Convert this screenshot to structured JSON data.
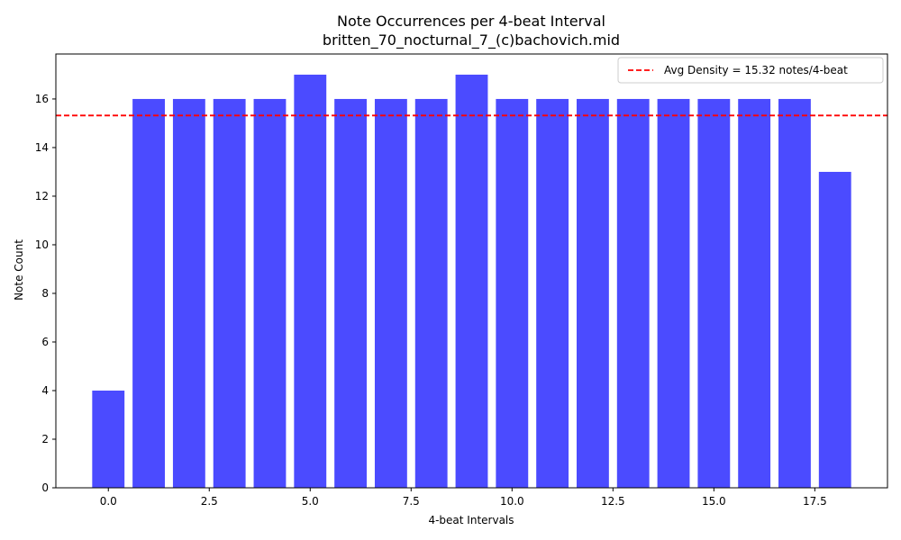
{
  "chart_data": {
    "type": "bar",
    "title": "Note Occurrences per 4-beat Interval",
    "subtitle": "britten_70_nocturnal_7_(c)bachovich.mid",
    "xlabel": "4-beat Intervals",
    "ylabel": "Note Count",
    "x": [
      0,
      1,
      2,
      3,
      4,
      5,
      6,
      7,
      8,
      9,
      10,
      11,
      12,
      13,
      14,
      15,
      16,
      17,
      18
    ],
    "values": [
      4,
      16,
      16,
      16,
      16,
      17,
      16,
      16,
      16,
      17,
      16,
      16,
      16,
      16,
      16,
      16,
      16,
      16,
      13
    ],
    "bar_color": "#4b4bff",
    "xlim": [
      -1.3,
      19.3
    ],
    "ylim": [
      0,
      17.85
    ],
    "xticks": [
      0.0,
      2.5,
      5.0,
      7.5,
      10.0,
      12.5,
      15.0,
      17.5
    ],
    "xtick_labels": [
      "0.0",
      "2.5",
      "5.0",
      "7.5",
      "10.0",
      "12.5",
      "15.0",
      "17.5"
    ],
    "yticks": [
      0,
      2,
      4,
      6,
      8,
      10,
      12,
      14,
      16
    ],
    "ytick_labels": [
      "0",
      "2",
      "4",
      "6",
      "8",
      "10",
      "12",
      "14",
      "16"
    ],
    "reference_line": {
      "y": 15.32,
      "label": "Avg Density = 15.32 notes/4-beat",
      "color": "#ff0000",
      "style": "dashed"
    },
    "legend_position": "top-right",
    "grid": false
  }
}
